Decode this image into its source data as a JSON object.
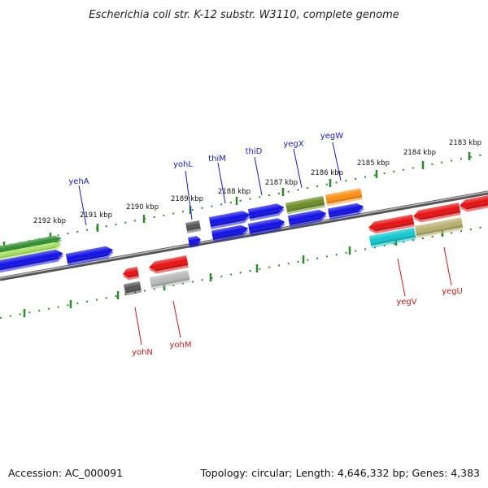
{
  "title": "Escherichia coli str. K-12 substr. W3110, complete genome",
  "accession": "Accession: AC_000091",
  "summary": "Topology: circular; Length: 4,646,332 bp; Genes: 4,383",
  "colors": {
    "backbone": "#7d7d7d",
    "ticks": "#2a8a2a",
    "forward_label": "#1a1acc",
    "reverse_label": "#cc1a1a"
  },
  "scale_labels": [
    "2192 kbp",
    "2191 kbp",
    "2190 kbp",
    "2189 kbp",
    "2188 kbp",
    "2187 kbp",
    "2186 kbp",
    "2185 kbp",
    "2184 kbp",
    "2183 kbp"
  ],
  "forward_gene_labels": [
    "yehA",
    "yohL",
    "thiM",
    "thiD",
    "yegX",
    "yegW"
  ],
  "reverse_gene_labels": [
    "yohN",
    "yohM",
    "yegV",
    "yegU"
  ],
  "gene_colors": {
    "blue": "#1010e8",
    "red": "#e81010",
    "dark_gray": "#555555",
    "light_gray": "#b8b8b8",
    "green": "#2f8f2f",
    "light_green": "#a8e060",
    "olive": "#6b8e23",
    "orange": "#ff9010",
    "cyan": "#10c8d0",
    "khaki": "#b8b070"
  }
}
